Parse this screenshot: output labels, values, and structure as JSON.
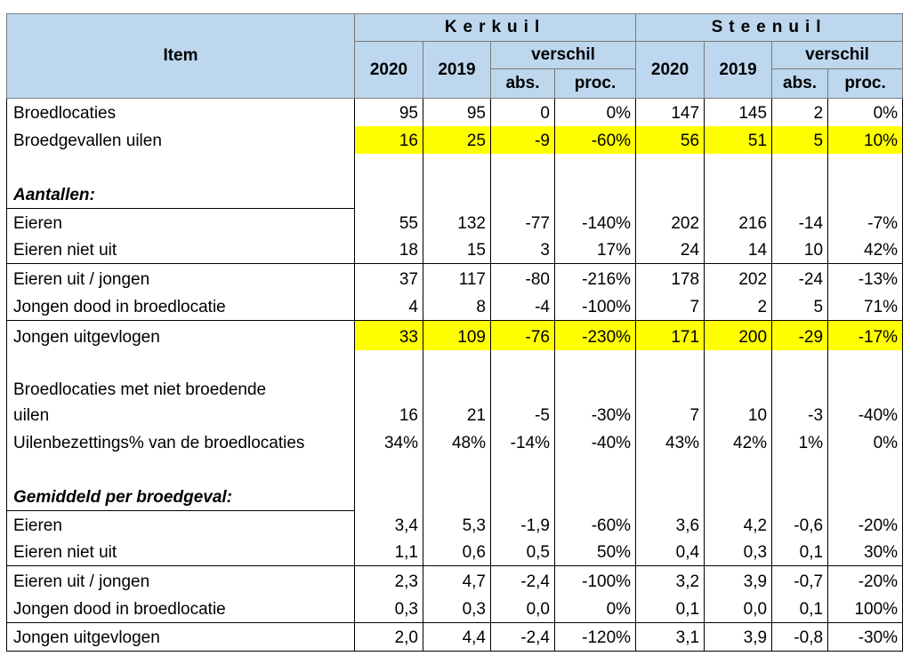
{
  "header": {
    "item": "Item",
    "kerkuil": "Kerkuil",
    "steenuil": "Steenuil",
    "year_a": "2020",
    "year_b": "2019",
    "verschil": "verschil",
    "abs": "abs.",
    "proc": "proc."
  },
  "rows": [
    {
      "label": "Broedlocaties",
      "v": [
        "95",
        "95",
        "0",
        "0%",
        "147",
        "145",
        "2",
        "0%"
      ]
    },
    {
      "label": "Broedgevallen uilen",
      "v": [
        "16",
        "25",
        "-9",
        "-60%",
        "56",
        "51",
        "5",
        "10%"
      ]
    },
    {
      "label": "Aantallen:"
    },
    {
      "label": "Eieren",
      "v": [
        "55",
        "132",
        "-77",
        "-140%",
        "202",
        "216",
        "-14",
        "-7%"
      ]
    },
    {
      "label": "Eieren niet uit",
      "v": [
        "18",
        "15",
        "3",
        "17%",
        "24",
        "14",
        "10",
        "42%"
      ]
    },
    {
      "label": "Eieren uit / jongen",
      "v": [
        "37",
        "117",
        "-80",
        "-216%",
        "178",
        "202",
        "-24",
        "-13%"
      ]
    },
    {
      "label": "Jongen dood in broedlocatie",
      "v": [
        "4",
        "8",
        "-4",
        "-100%",
        "7",
        "2",
        "5",
        "71%"
      ]
    },
    {
      "label": "Jongen uitgevlogen",
      "v": [
        "33",
        "109",
        "-76",
        "-230%",
        "171",
        "200",
        "-29",
        "-17%"
      ]
    },
    {
      "label": "Broedlocaties met niet broedende"
    },
    {
      "label": "uilen",
      "v": [
        "16",
        "21",
        "-5",
        "-30%",
        "7",
        "10",
        "-3",
        "-40%"
      ]
    },
    {
      "label": "Uilenbezettings% van de broedlocaties",
      "v": [
        "34%",
        "48%",
        "-14%",
        "-40%",
        "43%",
        "42%",
        "1%",
        "0%"
      ]
    },
    {
      "label": "Gemiddeld per broedgeval:"
    },
    {
      "label": "Eieren",
      "v": [
        "3,4",
        "5,3",
        "-1,9",
        "-60%",
        "3,6",
        "4,2",
        "-0,6",
        "-20%"
      ]
    },
    {
      "label": "Eieren niet uit",
      "v": [
        "1,1",
        "0,6",
        "0,5",
        "50%",
        "0,4",
        "0,3",
        "0,1",
        "30%"
      ]
    },
    {
      "label": "Eieren uit / jongen",
      "v": [
        "2,3",
        "4,7",
        "-2,4",
        "-100%",
        "3,2",
        "3,9",
        "-0,7",
        "-20%"
      ]
    },
    {
      "label": "Jongen dood in broedlocatie",
      "v": [
        "0,3",
        "0,3",
        "0,0",
        "0%",
        "0,1",
        "0,0",
        "0,1",
        "100%"
      ]
    },
    {
      "label": "Jongen uitgevlogen",
      "v": [
        "2,0",
        "4,4",
        "-2,4",
        "-120%",
        "3,1",
        "3,9",
        "-0,8",
        "-30%"
      ]
    }
  ]
}
